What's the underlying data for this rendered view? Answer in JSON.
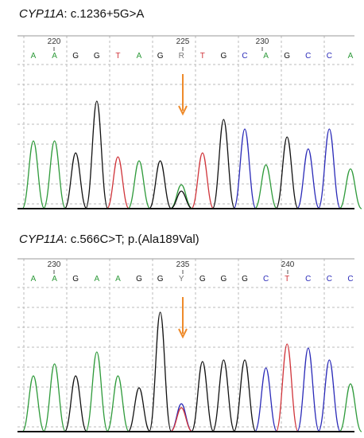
{
  "panels": [
    {
      "gene": "CYP11A",
      "variant": ": c.1236+5G>A",
      "positions": [
        "220",
        "225",
        "230"
      ],
      "bases": [
        "A",
        "A",
        "G",
        "G",
        "T",
        "A",
        "G",
        "R",
        "T",
        "G",
        "C",
        "A",
        "G",
        "C",
        "C",
        "A"
      ]
    },
    {
      "gene": "CYP11A",
      "variant": ": c.566C>T; p.(Ala189Val)",
      "positions": [
        "230",
        "235",
        "240"
      ],
      "bases": [
        "A",
        "A",
        "G",
        "A",
        "A",
        "G",
        "G",
        "Y",
        "G",
        "G",
        "G",
        "C",
        "T",
        "C",
        "C",
        "C"
      ]
    }
  ]
}
